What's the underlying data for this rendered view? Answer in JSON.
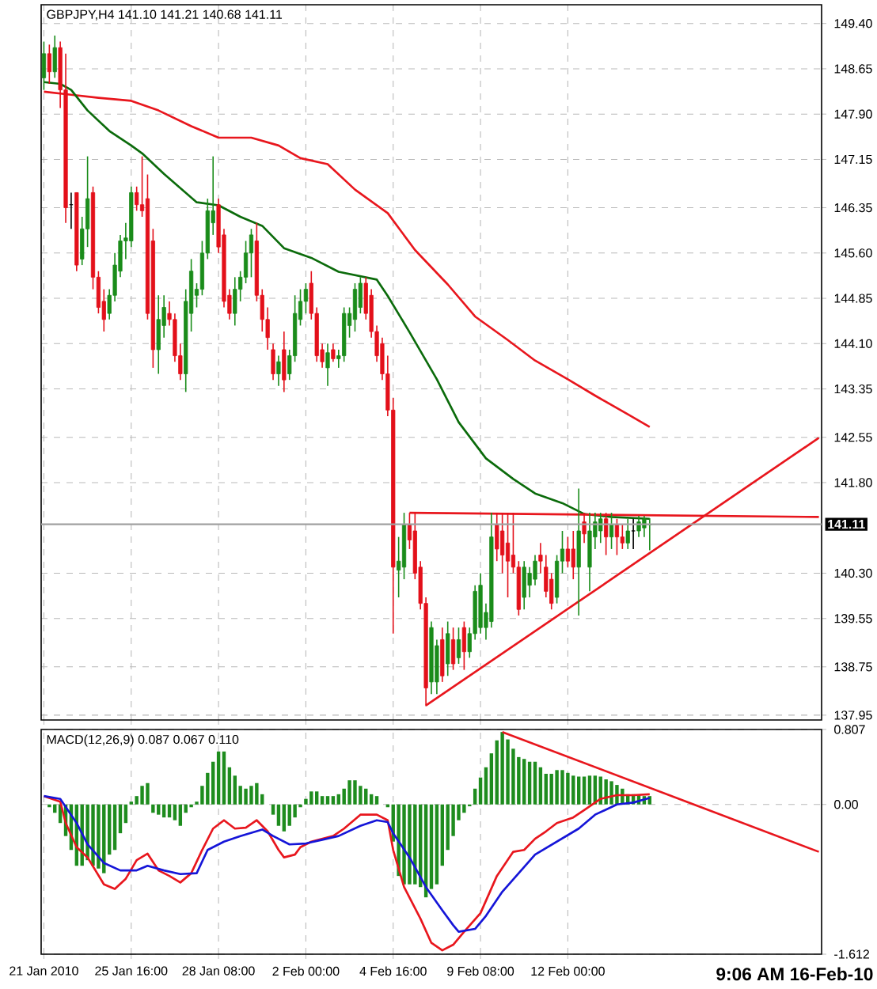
{
  "chart_data": [
    {
      "type": "candlestick",
      "title": "GBPJPY,H4 141.10 141.21 140.68 141.11",
      "categories": [
        null,
        null,
        null,
        null,
        null,
        null,
        null,
        null,
        null,
        null,
        null,
        null,
        null,
        null,
        null,
        null,
        null,
        null,
        null,
        null,
        null,
        null,
        null,
        null,
        null,
        null,
        null,
        null,
        null,
        null,
        null,
        null,
        null,
        null,
        null,
        null,
        null,
        null,
        null,
        null,
        null,
        null,
        null,
        null,
        null,
        null,
        null,
        null,
        null,
        null,
        null,
        null,
        null,
        null,
        null,
        null,
        null,
        null,
        null,
        null,
        null,
        null,
        null,
        null,
        null,
        null,
        null,
        null,
        null,
        null,
        null,
        null,
        null,
        null,
        null,
        null,
        null,
        null,
        null,
        null,
        null,
        null,
        null,
        null,
        null,
        null,
        null,
        null,
        null,
        null,
        null,
        null,
        null,
        null,
        null,
        null,
        null,
        null,
        null,
        null,
        null,
        null,
        null,
        null,
        null,
        null,
        null,
        null,
        null,
        null,
        null,
        null,
        null,
        null,
        null,
        null,
        null,
        null,
        null,
        null,
        null,
        null,
        null,
        null,
        null,
        null,
        null,
        null,
        null,
        null,
        null,
        null,
        null,
        null,
        null,
        null,
        null,
        null,
        null,
        null,
        null,
        null,
        null
      ],
      "ohlc": [
        [
          148.5,
          149.1,
          148.3,
          148.9
        ],
        [
          148.9,
          149.05,
          148.4,
          148.6
        ],
        [
          148.6,
          149.2,
          148.5,
          149.0
        ],
        [
          149.0,
          149.1,
          148.0,
          148.3
        ],
        [
          148.3,
          148.9,
          146.1,
          146.35
        ],
        [
          146.4,
          146.6,
          146.0,
          146.4
        ],
        [
          146.6,
          146.6,
          145.3,
          145.4
        ],
        [
          145.5,
          146.2,
          145.4,
          146.0
        ],
        [
          146.0,
          147.2,
          145.7,
          146.5
        ],
        [
          146.6,
          146.7,
          145.0,
          145.2
        ],
        [
          145.2,
          145.3,
          144.6,
          144.7
        ],
        [
          144.8,
          145.0,
          144.3,
          144.5
        ],
        [
          144.6,
          145.0,
          144.5,
          144.9
        ],
        [
          144.9,
          145.6,
          144.8,
          145.4
        ],
        [
          145.3,
          145.9,
          145.2,
          145.8
        ],
        [
          145.8,
          146.1,
          145.5,
          145.85
        ],
        [
          145.8,
          146.7,
          145.7,
          146.6
        ],
        [
          146.6,
          146.7,
          146.3,
          146.4
        ],
        [
          146.4,
          147.2,
          146.2,
          146.3
        ],
        [
          146.5,
          146.9,
          144.5,
          144.6
        ],
        [
          145.8,
          146.0,
          143.7,
          144.0
        ],
        [
          144.0,
          144.9,
          143.6,
          144.5
        ],
        [
          144.4,
          144.9,
          144.2,
          144.7
        ],
        [
          144.6,
          144.8,
          144.4,
          144.5
        ],
        [
          144.5,
          144.6,
          143.8,
          143.9
        ],
        [
          143.9,
          144.1,
          143.5,
          143.6
        ],
        [
          143.6,
          145.0,
          143.3,
          144.8
        ],
        [
          144.6,
          145.5,
          144.3,
          145.3
        ],
        [
          144.9,
          145.1,
          144.7,
          145.0
        ],
        [
          145.0,
          145.8,
          144.9,
          145.6
        ],
        [
          145.6,
          146.5,
          145.5,
          146.3
        ],
        [
          146.1,
          147.2,
          145.9,
          146.3
        ],
        [
          146.4,
          146.5,
          145.6,
          145.7
        ],
        [
          145.9,
          146.0,
          144.7,
          144.8
        ],
        [
          144.9,
          145.0,
          144.5,
          144.6
        ],
        [
          144.6,
          145.2,
          144.4,
          145.0
        ],
        [
          145.0,
          145.3,
          144.8,
          145.2
        ],
        [
          145.2,
          145.8,
          145.1,
          145.6
        ],
        [
          145.6,
          146.0,
          145.2,
          145.9
        ],
        [
          145.8,
          146.1,
          144.8,
          144.9
        ],
        [
          144.9,
          145.0,
          144.3,
          144.5
        ],
        [
          144.5,
          144.7,
          144.0,
          144.2
        ],
        [
          144.0,
          144.1,
          143.5,
          143.6
        ],
        [
          143.6,
          143.9,
          143.4,
          143.8
        ],
        [
          144.0,
          144.3,
          143.3,
          143.5
        ],
        [
          143.6,
          144.0,
          143.5,
          143.9
        ],
        [
          143.9,
          144.9,
          143.8,
          144.6
        ],
        [
          144.5,
          145.0,
          144.4,
          144.8
        ],
        [
          144.8,
          145.1,
          144.6,
          145.0
        ],
        [
          145.1,
          145.3,
          144.5,
          144.6
        ],
        [
          144.6,
          144.7,
          143.8,
          143.9
        ],
        [
          144.0,
          144.1,
          143.7,
          143.8
        ],
        [
          143.7,
          144.1,
          143.4,
          143.95
        ],
        [
          144.0,
          144.1,
          143.8,
          143.85
        ],
        [
          143.85,
          144.0,
          143.7,
          143.9
        ],
        [
          143.9,
          144.7,
          143.8,
          144.6
        ],
        [
          144.4,
          144.7,
          144.2,
          144.6
        ],
        [
          144.5,
          145.1,
          144.3,
          145.0
        ],
        [
          144.7,
          145.2,
          144.6,
          145.1
        ],
        [
          145.1,
          145.2,
          144.5,
          144.6
        ],
        [
          144.9,
          145.0,
          144.2,
          144.3
        ],
        [
          144.3,
          144.4,
          143.8,
          143.9
        ],
        [
          144.1,
          144.2,
          143.5,
          143.6
        ],
        [
          143.6,
          143.9,
          142.9,
          143.0
        ],
        [
          143.0,
          143.2,
          139.3,
          140.4
        ],
        [
          140.35,
          140.9,
          139.9,
          140.5
        ],
        [
          140.4,
          141.3,
          140.2,
          141.1
        ],
        [
          141.1,
          141.3,
          140.7,
          140.85
        ],
        [
          141.0,
          141.3,
          140.2,
          140.3
        ],
        [
          140.4,
          140.5,
          139.7,
          139.8
        ],
        [
          139.8,
          139.9,
          138.1,
          138.4
        ],
        [
          138.5,
          139.5,
          138.3,
          139.4
        ],
        [
          138.5,
          139.2,
          138.3,
          139.1
        ],
        [
          139.2,
          139.4,
          138.5,
          138.6
        ],
        [
          138.8,
          139.5,
          138.6,
          139.3
        ],
        [
          139.2,
          139.4,
          138.7,
          138.8
        ],
        [
          138.9,
          139.4,
          138.8,
          139.2
        ],
        [
          139.4,
          139.5,
          138.7,
          139.0
        ],
        [
          139.0,
          139.4,
          138.9,
          139.3
        ],
        [
          139.3,
          140.1,
          139.2,
          140.0
        ],
        [
          139.4,
          140.3,
          139.3,
          140.1
        ],
        [
          139.4,
          139.8,
          139.2,
          139.65
        ],
        [
          139.5,
          141.3,
          139.4,
          140.9
        ],
        [
          141.1,
          141.3,
          140.5,
          140.7
        ],
        [
          141.0,
          141.3,
          140.3,
          140.6
        ],
        [
          140.8,
          141.3,
          139.9,
          140.5
        ],
        [
          140.6,
          141.3,
          140.3,
          140.4
        ],
        [
          140.4,
          140.5,
          139.6,
          139.7
        ],
        [
          139.9,
          140.5,
          139.7,
          140.4
        ],
        [
          140.1,
          140.4,
          139.9,
          140.3
        ],
        [
          140.2,
          140.6,
          140.1,
          140.5
        ],
        [
          140.6,
          140.8,
          140.3,
          140.5
        ],
        [
          140.4,
          140.6,
          139.9,
          140.0
        ],
        [
          140.2,
          140.3,
          139.7,
          139.8
        ],
        [
          139.9,
          140.6,
          139.8,
          140.5
        ],
        [
          140.5,
          141.0,
          140.3,
          140.7
        ],
        [
          140.7,
          140.9,
          140.4,
          140.5
        ],
        [
          140.7,
          141.0,
          140.2,
          140.4
        ],
        [
          140.4,
          141.7,
          139.6,
          141.0
        ],
        [
          141.15,
          141.3,
          140.8,
          140.95
        ],
        [
          140.4,
          141.3,
          140.0,
          141.0
        ],
        [
          140.9,
          141.3,
          140.7,
          141.15
        ],
        [
          141.0,
          141.3,
          140.8,
          141.2
        ],
        [
          141.2,
          141.3,
          140.6,
          140.9
        ],
        [
          140.9,
          141.3,
          140.7,
          141.1
        ],
        [
          141.1,
          141.2,
          140.6,
          140.9
        ],
        [
          140.9,
          141.1,
          140.7,
          140.8
        ],
        [
          140.8,
          141.2,
          140.7,
          141.0
        ],
        [
          141.0,
          141.2,
          140.7,
          141.0
        ],
        [
          141.0,
          141.25,
          140.9,
          141.15
        ],
        [
          141.05,
          141.25,
          140.9,
          141.2
        ],
        [
          141.1,
          141.21,
          140.68,
          141.11
        ],
        null,
        null,
        null,
        null,
        null,
        null,
        null,
        null,
        null,
        null,
        null,
        null,
        null,
        null,
        null,
        null,
        null,
        null,
        null,
        null,
        null,
        null,
        null,
        null,
        null,
        null,
        null,
        null,
        null,
        null,
        null
      ],
      "series": [
        {
          "type": "line",
          "color": "#e8161d",
          "values": [
            148.27,
            null,
            null,
            null,
            null,
            148.22,
            null,
            null,
            null,
            null,
            148.17,
            null,
            null,
            null,
            null,
            null,
            148.12,
            null,
            null,
            null,
            null,
            147.96,
            null,
            null,
            null,
            null,
            null,
            147.7,
            null,
            null,
            null,
            null,
            147.51,
            null,
            null,
            null,
            null,
            null,
            147.51,
            null,
            null,
            null,
            null,
            147.38,
            null,
            null,
            null,
            147.17,
            null,
            null,
            null,
            null,
            147.07,
            null,
            null,
            null,
            null,
            146.65,
            null,
            null,
            null,
            null,
            null,
            146.26,
            null,
            null,
            null,
            null,
            145.65,
            null,
            null,
            null,
            null,
            null,
            145.08,
            null,
            null,
            null,
            null,
            144.55,
            null,
            null,
            null,
            null,
            null,
            144.16,
            null,
            null,
            null,
            null,
            143.82,
            null,
            null,
            null,
            null,
            null,
            143.51,
            null,
            null,
            null,
            null,
            143.24,
            null,
            null,
            null,
            null,
            null,
            142.93,
            null,
            null,
            null,
            142.72,
            null,
            null,
            null,
            null,
            null,
            null,
            null,
            null,
            null,
            null,
            null,
            null,
            null,
            null,
            null,
            null,
            null,
            null,
            null,
            null,
            null,
            null,
            null,
            null,
            null,
            null,
            null,
            null,
            null,
            null,
            null
          ]
        },
        {
          "type": "line",
          "color": "#0b6b0b",
          "values": [
            148.43,
            null,
            null,
            148.4,
            null,
            148.3,
            null,
            null,
            147.96,
            null,
            null,
            null,
            147.62,
            null,
            null,
            null,
            147.38,
            null,
            147.25,
            null,
            null,
            null,
            146.91,
            null,
            null,
            null,
            null,
            null,
            146.44,
            null,
            null,
            null,
            146.39,
            null,
            null,
            null,
            146.2,
            null,
            null,
            null,
            146.05,
            null,
            null,
            null,
            145.68,
            null,
            null,
            null,
            null,
            145.52,
            null,
            null,
            null,
            null,
            145.29,
            null,
            null,
            null,
            null,
            null,
            null,
            145.16,
            null,
            144.89,
            null,
            null,
            null,
            144.29,
            null,
            null,
            null,
            null,
            143.51,
            null,
            null,
            null,
            142.8,
            null,
            null,
            null,
            null,
            142.2,
            null,
            null,
            null,
            null,
            141.86,
            null,
            null,
            null,
            141.62,
            null,
            null,
            null,
            null,
            141.46,
            null,
            null,
            null,
            141.28,
            null,
            null,
            null,
            null,
            141.23,
            null,
            null,
            null,
            null,
            null,
            null,
            141.2,
            null,
            null,
            null,
            null,
            null,
            null,
            null,
            null,
            null,
            null,
            null,
            null,
            null,
            null,
            null,
            null,
            null,
            null,
            null,
            null,
            null,
            null,
            null,
            null,
            null,
            null,
            null,
            null,
            null,
            null,
            null
          ]
        },
        {
          "type": "line",
          "color": "#e8161d",
          "values": [
            null,
            null,
            null,
            null,
            null,
            null,
            null,
            null,
            null,
            null,
            null,
            null,
            null,
            null,
            null,
            null,
            null,
            null,
            null,
            null,
            null,
            null,
            null,
            null,
            null,
            null,
            null,
            null,
            null,
            null,
            null,
            null,
            null,
            null,
            null,
            null,
            null,
            null,
            null,
            null,
            null,
            null,
            null,
            null,
            null,
            null,
            null,
            null,
            null,
            null,
            null,
            null,
            null,
            null,
            null,
            null,
            null,
            null,
            null,
            null,
            null,
            null,
            null,
            null,
            null,
            null,
            null,
            141.3,
            null,
            null,
            null,
            null,
            null,
            null,
            null,
            null,
            null,
            null,
            null,
            null,
            null,
            null,
            null,
            null,
            null,
            null,
            null,
            null,
            null,
            null,
            null,
            null,
            null,
            null,
            null,
            null,
            null,
            null,
            null,
            null,
            null,
            null,
            null,
            null,
            null,
            null,
            null,
            null,
            null,
            null,
            null,
            null,
            null,
            null,
            null,
            null,
            null,
            null,
            null,
            null,
            null,
            null,
            null,
            null,
            null,
            null,
            null,
            null,
            null,
            null,
            null,
            null,
            null,
            null,
            null,
            null,
            null,
            null,
            null,
            null,
            null,
            null,
            141.23
          ]
        },
        {
          "type": "line",
          "color": "#e8161d",
          "values": [
            null,
            null,
            null,
            null,
            null,
            null,
            null,
            null,
            null,
            null,
            null,
            null,
            null,
            null,
            null,
            null,
            null,
            null,
            null,
            null,
            null,
            null,
            null,
            null,
            null,
            null,
            null,
            null,
            null,
            null,
            null,
            null,
            null,
            null,
            null,
            null,
            null,
            null,
            null,
            null,
            null,
            null,
            null,
            null,
            null,
            null,
            null,
            null,
            null,
            null,
            null,
            null,
            null,
            null,
            null,
            null,
            null,
            null,
            null,
            null,
            null,
            null,
            null,
            null,
            null,
            null,
            null,
            null,
            null,
            null,
            138.11,
            null,
            null,
            null,
            null,
            null,
            null,
            null,
            null,
            null,
            null,
            null,
            null,
            null,
            null,
            null,
            null,
            null,
            null,
            null,
            null,
            null,
            null,
            null,
            null,
            null,
            null,
            null,
            null,
            null,
            null,
            null,
            null,
            null,
            null,
            null,
            null,
            null,
            null,
            null,
            null,
            null,
            null,
            null,
            null,
            null,
            null,
            null,
            null,
            null,
            null,
            null,
            null,
            null,
            null,
            null,
            null,
            null,
            null,
            null,
            null,
            null,
            null,
            null,
            null,
            null,
            null,
            null,
            null,
            null,
            null,
            null,
            142.54
          ]
        }
      ],
      "ref_lines": [
        {
          "axis": "y",
          "value": 141.11,
          "label": "141.11",
          "color": "#a0a0a0"
        }
      ],
      "ylim": [
        137.87,
        149.71
      ],
      "yticks": [
        {
          "value": 149.4,
          "label": "149.40"
        },
        148.65,
        {
          "value": 147.9,
          "label": "147.90"
        },
        147.15,
        146.35,
        {
          "value": 145.6,
          "label": "145.60"
        },
        144.85,
        {
          "value": 144.1,
          "label": "144.10"
        },
        143.35,
        142.55,
        {
          "value": 141.8,
          "label": "141.80"
        },
        {
          "value": 140.3,
          "label": "140.30"
        },
        139.55,
        138.75,
        137.95
      ],
      "grid": true,
      "tick_labels": "y"
    },
    {
      "type": "bar",
      "title": "MACD(12,26,9) 0.087 0.067 0.110",
      "categories": [
        "21 Jan 2010",
        null,
        null,
        null,
        null,
        null,
        null,
        null,
        null,
        null,
        null,
        null,
        null,
        null,
        null,
        null,
        "25 Jan 16:00",
        null,
        null,
        null,
        null,
        null,
        null,
        null,
        null,
        null,
        null,
        null,
        null,
        null,
        null,
        null,
        "28 Jan 08:00",
        null,
        null,
        null,
        null,
        null,
        null,
        null,
        null,
        null,
        null,
        null,
        null,
        null,
        null,
        null,
        "2 Feb 00:00",
        null,
        null,
        null,
        null,
        null,
        null,
        null,
        null,
        null,
        null,
        null,
        null,
        null,
        null,
        null,
        "4 Feb 16:00",
        null,
        null,
        null,
        null,
        null,
        null,
        null,
        null,
        null,
        null,
        null,
        null,
        null,
        null,
        null,
        "9 Feb 08:00",
        null,
        null,
        null,
        null,
        null,
        null,
        null,
        null,
        null,
        null,
        null,
        null,
        null,
        null,
        null,
        "12 Feb 00:00",
        null,
        null,
        null,
        null,
        null,
        null,
        null,
        null,
        null,
        null,
        null,
        null,
        null,
        null,
        null,
        null,
        null,
        null,
        null,
        null,
        null,
        null,
        null,
        null,
        null,
        null,
        null,
        null,
        null,
        null,
        null,
        null,
        null,
        null,
        null,
        null,
        null,
        null,
        null,
        null,
        null,
        null,
        null,
        null,
        null,
        null
      ],
      "series": [
        {
          "type": "bar",
          "color": "#1e8c1e",
          "values": [
            0,
            -0.03,
            -0.09,
            -0.2,
            -0.34,
            -0.49,
            -0.66,
            -0.66,
            -0.6,
            -0.66,
            -0.69,
            -0.74,
            -0.54,
            -0.49,
            -0.31,
            -0.2,
            0.03,
            0.09,
            0.2,
            0.23,
            -0.09,
            -0.11,
            -0.14,
            -0.14,
            -0.17,
            -0.23,
            -0.09,
            -0.03,
            0.03,
            0.2,
            0.34,
            0.46,
            0.57,
            0.57,
            0.4,
            0.31,
            0.2,
            0.17,
            0.2,
            0.23,
            0.11,
            0,
            -0.11,
            -0.23,
            -0.29,
            -0.23,
            -0.14,
            -0.03,
            0.06,
            0.14,
            0.14,
            0.09,
            0.09,
            0.09,
            0.11,
            0.17,
            0.26,
            0.26,
            0.2,
            0.17,
            0.11,
            0.09,
            0,
            -0.03,
            -0.4,
            -0.77,
            -0.86,
            -0.86,
            -0.86,
            -0.89,
            -1.0,
            -0.91,
            -0.86,
            -0.66,
            -0.49,
            -0.34,
            -0.17,
            -0.09,
            -0.02,
            0.17,
            0.29,
            0.4,
            0.55,
            0.69,
            0.78,
            0.7,
            0.6,
            0.51,
            0.49,
            0.46,
            0.46,
            0.4,
            0.33,
            0.33,
            0.37,
            0.37,
            0.34,
            0.31,
            0.3,
            0.3,
            0.31,
            0.31,
            0.3,
            0.27,
            0.25,
            0.21,
            0.17,
            0.11,
            0.11,
            0.1,
            0.09,
            0.09,
            null,
            null,
            null,
            null,
            null,
            null,
            null,
            null,
            null,
            null,
            null,
            null,
            null,
            null,
            null,
            null,
            null,
            null,
            null,
            null,
            null,
            null,
            null,
            null,
            null,
            null,
            null,
            null,
            null,
            null,
            null
          ]
        },
        {
          "type": "line",
          "color": "#e8161d",
          "values": [
            0.09,
            null,
            null,
            0.03,
            -0.2,
            null,
            -0.46,
            null,
            -0.57,
            null,
            null,
            -0.86,
            null,
            -0.91,
            null,
            -0.8,
            null,
            -0.6,
            null,
            -0.53,
            null,
            -0.71,
            null,
            -0.77,
            null,
            -0.84,
            null,
            -0.74,
            null,
            -0.49,
            null,
            -0.26,
            null,
            -0.17,
            null,
            -0.26,
            null,
            -0.25,
            null,
            -0.17,
            null,
            -0.29,
            null,
            -0.49,
            -0.57,
            null,
            -0.54,
            -0.46,
            null,
            -0.4,
            null,
            null,
            null,
            -0.34,
            null,
            -0.26,
            null,
            null,
            -0.11,
            null,
            null,
            -0.11,
            null,
            -0.17,
            -0.49,
            null,
            -0.89,
            null,
            null,
            -1.23,
            null,
            -1.49,
            null,
            -1.57,
            null,
            -1.51,
            null,
            -1.37,
            null,
            null,
            -1.17,
            null,
            null,
            -0.77,
            null,
            null,
            -0.51,
            null,
            -0.49,
            null,
            -0.37,
            null,
            -0.29,
            null,
            -0.2,
            null,
            null,
            -0.14,
            null,
            -0.06,
            null,
            null,
            0.06,
            null,
            null,
            0.1,
            null,
            null,
            0.1,
            null,
            null,
            0.11,
            null,
            null,
            null,
            null,
            null,
            null,
            null,
            null,
            null,
            null,
            null,
            null,
            null,
            null,
            null,
            null,
            null,
            null,
            null,
            null,
            null,
            null,
            null,
            null,
            null,
            null,
            null,
            null,
            null,
            null,
            null
          ]
        },
        {
          "type": "line",
          "color": "#1515d8",
          "values": [
            0.09,
            null,
            null,
            0.06,
            null,
            null,
            -0.2,
            null,
            -0.43,
            null,
            null,
            -0.63,
            null,
            null,
            -0.71,
            null,
            null,
            -0.71,
            null,
            -0.66,
            null,
            null,
            -0.71,
            null,
            null,
            -0.75,
            null,
            null,
            -0.74,
            null,
            -0.49,
            null,
            null,
            -0.4,
            null,
            null,
            -0.34,
            null,
            null,
            null,
            -0.27,
            null,
            -0.34,
            null,
            null,
            -0.43,
            null,
            null,
            -0.42,
            null,
            null,
            -0.38,
            null,
            null,
            -0.34,
            null,
            null,
            null,
            -0.23,
            null,
            null,
            -0.17,
            null,
            -0.19,
            -0.31,
            null,
            null,
            -0.57,
            null,
            null,
            -0.89,
            null,
            null,
            -1.14,
            null,
            -1.3,
            -1.37,
            null,
            null,
            -1.34,
            null,
            -1.2,
            null,
            null,
            -0.94,
            null,
            null,
            -0.74,
            null,
            null,
            -0.54,
            null,
            null,
            null,
            -0.4,
            null,
            null,
            null,
            -0.26,
            null,
            null,
            -0.11,
            null,
            null,
            null,
            0,
            null,
            null,
            0.02,
            null,
            null,
            0.07,
            null,
            null,
            null,
            null,
            null,
            null,
            null,
            null,
            null,
            null,
            null,
            null,
            null,
            null,
            null,
            null,
            null,
            null,
            null,
            null,
            null,
            null,
            null,
            null,
            null,
            null,
            null,
            null,
            null,
            null,
            null
          ]
        },
        {
          "type": "line",
          "color": "#e8161d",
          "values": [
            null,
            null,
            null,
            null,
            null,
            null,
            null,
            null,
            null,
            null,
            null,
            null,
            null,
            null,
            null,
            null,
            null,
            null,
            null,
            null,
            null,
            null,
            null,
            null,
            null,
            null,
            null,
            null,
            null,
            null,
            null,
            null,
            null,
            null,
            null,
            null,
            null,
            null,
            null,
            null,
            null,
            null,
            null,
            null,
            null,
            null,
            null,
            null,
            null,
            null,
            null,
            null,
            null,
            null,
            null,
            null,
            null,
            null,
            null,
            null,
            null,
            null,
            null,
            null,
            null,
            null,
            null,
            null,
            null,
            null,
            null,
            null,
            null,
            null,
            null,
            null,
            null,
            null,
            null,
            null,
            null,
            null,
            null,
            null,
            0.78,
            null,
            null,
            null,
            null,
            null,
            null,
            null,
            null,
            null,
            null,
            null,
            null,
            null,
            null,
            null,
            null,
            null,
            null,
            null,
            null,
            null,
            null,
            null,
            null,
            null,
            null,
            null,
            null,
            null,
            null,
            null,
            null,
            null,
            null,
            null,
            null,
            null,
            null,
            null,
            null,
            null,
            null,
            null,
            null,
            null,
            null,
            null,
            null,
            null,
            null,
            null,
            null,
            null,
            null,
            null,
            null,
            null,
            -0.51
          ]
        }
      ],
      "ylim": [
        -1.612,
        0.807
      ],
      "yticks": [
        0.807,
        {
          "value": 0,
          "label": "0.00"
        },
        -1.612
      ],
      "grid": true,
      "annotations": [
        "9:06 AM 16-Feb-10"
      ]
    }
  ]
}
